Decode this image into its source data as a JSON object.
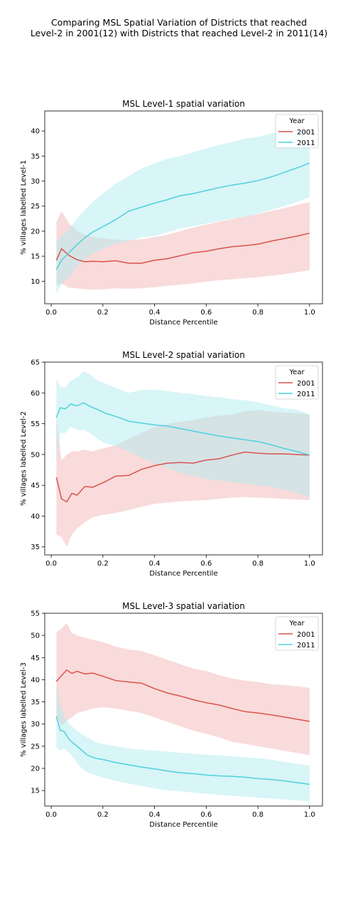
{
  "figure": {
    "title_line1": "Comparing MSL Spatial Variation of Districts that reached",
    "title_line2": "Level-2 in 2001(12) with Districts that reached Level-2 in 2011(14)"
  },
  "colors": {
    "2001": "#d9534f",
    "2011": "#4fd1dc",
    "band_2001": "#f2b8b5",
    "band_2011": "#b2ebef"
  },
  "chart_data": [
    {
      "type": "line",
      "title": "MSL Level-1 spatial variation",
      "xlabel": "Distance Percentile",
      "ylabel": "% villages labelled Level-1",
      "xlim": [
        -0.025,
        1.05
      ],
      "ylim": [
        5.5,
        44
      ],
      "xticks": [
        0.0,
        0.2,
        0.4,
        0.6,
        0.8,
        1.0
      ],
      "xtick_labels": [
        "0.0",
        "0.2",
        "0.4",
        "0.6",
        "0.8",
        "1.0"
      ],
      "yticks": [
        10,
        15,
        20,
        25,
        30,
        35,
        40
      ],
      "ytick_labels": [
        "10",
        "15",
        "20",
        "25",
        "30",
        "35",
        "40"
      ],
      "legend": {
        "title": "Year",
        "position": "top-right"
      },
      "series": [
        {
          "name": "2001",
          "x": [
            0.02,
            0.04,
            0.07,
            0.1,
            0.13,
            0.16,
            0.2,
            0.25,
            0.3,
            0.35,
            0.4,
            0.45,
            0.5,
            0.55,
            0.6,
            0.65,
            0.7,
            0.75,
            0.8,
            0.85,
            0.9,
            0.95,
            1.0
          ],
          "y": [
            14.2,
            16.5,
            15.1,
            14.3,
            13.9,
            14.0,
            13.9,
            14.1,
            13.6,
            13.6,
            14.2,
            14.5,
            15.1,
            15.7,
            16.0,
            16.5,
            16.9,
            17.1,
            17.4,
            18.0,
            18.5,
            19.0,
            19.6
          ],
          "lower": [
            9.2,
            9.5,
            8.7,
            8.6,
            8.4,
            8.3,
            8.4,
            8.6,
            8.5,
            8.6,
            8.8,
            9.1,
            9.3,
            9.6,
            9.9,
            10.2,
            10.4,
            10.6,
            10.8,
            11.1,
            11.4,
            11.8,
            12.2
          ],
          "upper": [
            21.8,
            24.0,
            21.5,
            20.1,
            19.3,
            18.9,
            18.6,
            18.3,
            18.2,
            18.4,
            18.8,
            19.3,
            20.0,
            20.7,
            21.3,
            21.9,
            22.4,
            22.9,
            23.4,
            24.0,
            24.6,
            25.2,
            25.8
          ]
        },
        {
          "name": "2011",
          "x": [
            0.02,
            0.04,
            0.07,
            0.1,
            0.13,
            0.16,
            0.2,
            0.25,
            0.3,
            0.35,
            0.4,
            0.45,
            0.5,
            0.55,
            0.6,
            0.65,
            0.7,
            0.75,
            0.8,
            0.85,
            0.9,
            0.95,
            1.0
          ],
          "y": [
            12.3,
            14.2,
            15.8,
            17.3,
            18.7,
            19.8,
            20.9,
            22.3,
            24.0,
            24.8,
            25.6,
            26.3,
            27.1,
            27.5,
            28.1,
            28.7,
            29.2,
            29.6,
            30.1,
            30.8,
            31.7,
            32.6,
            33.6
          ],
          "lower": [
            7.5,
            9.5,
            11.0,
            13.0,
            14.5,
            15.5,
            16.5,
            17.5,
            18.0,
            18.8,
            19.0,
            19.8,
            20.5,
            21.0,
            21.5,
            22.0,
            22.5,
            22.8,
            23.5,
            24.2,
            25.0,
            25.8,
            26.8
          ],
          "upper": [
            18.0,
            19.0,
            20.5,
            22.5,
            24.2,
            25.8,
            27.5,
            29.5,
            31.0,
            32.5,
            33.5,
            34.5,
            35.0,
            35.8,
            36.5,
            37.2,
            37.8,
            38.5,
            38.8,
            39.5,
            40.0,
            40.3,
            40.5
          ]
        }
      ]
    },
    {
      "type": "line",
      "title": "MSL Level-2 spatial variation",
      "xlabel": "Distance Percentile",
      "ylabel": "% villages labelled Level-2",
      "xlim": [
        -0.025,
        1.05
      ],
      "ylim": [
        33.7,
        65
      ],
      "xticks": [
        0.0,
        0.2,
        0.4,
        0.6,
        0.8,
        1.0
      ],
      "xtick_labels": [
        "0.0",
        "0.2",
        "0.4",
        "0.6",
        "0.8",
        "1.0"
      ],
      "yticks": [
        35,
        40,
        45,
        50,
        55,
        60,
        65
      ],
      "ytick_labels": [
        "35",
        "40",
        "45",
        "50",
        "55",
        "60",
        "65"
      ],
      "legend": {
        "title": "Year",
        "position": "top-right"
      },
      "series": [
        {
          "name": "2001",
          "x": [
            0.02,
            0.04,
            0.06,
            0.08,
            0.1,
            0.13,
            0.16,
            0.2,
            0.25,
            0.3,
            0.35,
            0.4,
            0.45,
            0.5,
            0.55,
            0.6,
            0.65,
            0.7,
            0.75,
            0.8,
            0.85,
            0.9,
            0.95,
            1.0
          ],
          "y": [
            46.3,
            42.8,
            42.3,
            43.7,
            43.4,
            44.8,
            44.7,
            45.4,
            46.5,
            46.6,
            47.6,
            48.2,
            48.6,
            48.7,
            48.6,
            49.1,
            49.3,
            49.9,
            50.4,
            50.2,
            50.1,
            50.1,
            50.0,
            49.9
          ],
          "lower": [
            37.0,
            36.6,
            35.0,
            37.0,
            38.0,
            39.0,
            39.8,
            40.2,
            40.5,
            41.0,
            41.5,
            42.0,
            42.2,
            42.4,
            42.5,
            42.6,
            42.8,
            43.0,
            43.1,
            43.0,
            42.9,
            42.8,
            42.7,
            42.6
          ],
          "upper": [
            56.0,
            49.0,
            50.0,
            50.5,
            50.5,
            50.8,
            50.5,
            51.0,
            51.5,
            52.5,
            53.5,
            54.5,
            55.0,
            55.3,
            55.6,
            56.0,
            56.3,
            56.5,
            57.0,
            57.2,
            57.0,
            56.8,
            56.7,
            56.5
          ]
        },
        {
          "name": "2011",
          "x": [
            0.02,
            0.035,
            0.055,
            0.075,
            0.1,
            0.125,
            0.15,
            0.18,
            0.21,
            0.24,
            0.27,
            0.3,
            0.35,
            0.4,
            0.45,
            0.5,
            0.55,
            0.6,
            0.65,
            0.7,
            0.75,
            0.8,
            0.85,
            0.9,
            0.95,
            1.0
          ],
          "y": [
            56.0,
            57.6,
            57.4,
            58.2,
            57.9,
            58.4,
            57.8,
            57.3,
            56.7,
            56.3,
            55.9,
            55.4,
            55.1,
            54.8,
            54.6,
            54.2,
            53.8,
            53.4,
            53.0,
            52.7,
            52.4,
            52.1,
            51.6,
            51.0,
            50.5,
            49.9
          ],
          "lower": [
            49.0,
            53.5,
            53.5,
            54.5,
            54.0,
            54.0,
            53.5,
            52.5,
            51.8,
            51.5,
            51.0,
            50.5,
            49.5,
            48.5,
            47.8,
            47.0,
            46.5,
            46.0,
            45.8,
            45.5,
            45.3,
            45.0,
            44.8,
            44.3,
            43.8,
            43.0
          ],
          "upper": [
            62.3,
            61.0,
            60.8,
            62.0,
            62.5,
            63.5,
            63.0,
            62.0,
            61.5,
            61.0,
            60.5,
            60.0,
            60.5,
            60.5,
            60.3,
            60.0,
            59.8,
            59.5,
            59.3,
            59.0,
            58.8,
            58.5,
            58.0,
            57.5,
            57.3,
            56.5
          ]
        }
      ]
    },
    {
      "type": "line",
      "title": "MSL Level-3 spatial variation",
      "xlabel": "Distance Percentile",
      "ylabel": "% villages labelled Level-3",
      "xlim": [
        -0.025,
        1.05
      ],
      "ylim": [
        11.5,
        55
      ],
      "xticks": [
        0.0,
        0.2,
        0.4,
        0.6,
        0.8,
        1.0
      ],
      "xtick_labels": [
        "0.0",
        "0.2",
        "0.4",
        "0.6",
        "0.8",
        "1.0"
      ],
      "yticks": [
        15,
        20,
        25,
        30,
        35,
        40,
        45,
        50,
        55
      ],
      "ytick_labels": [
        "15",
        "20",
        "25",
        "30",
        "35",
        "40",
        "45",
        "50",
        "55"
      ],
      "legend": {
        "title": "Year",
        "position": "top-right"
      },
      "series": [
        {
          "name": "2001",
          "x": [
            0.02,
            0.04,
            0.06,
            0.08,
            0.1,
            0.13,
            0.16,
            0.2,
            0.25,
            0.3,
            0.35,
            0.4,
            0.45,
            0.5,
            0.55,
            0.6,
            0.65,
            0.7,
            0.75,
            0.8,
            0.85,
            0.9,
            0.95,
            1.0
          ],
          "y": [
            39.6,
            40.9,
            42.2,
            41.4,
            41.9,
            41.3,
            41.5,
            40.8,
            39.8,
            39.5,
            39.2,
            38.0,
            37.0,
            36.3,
            35.5,
            34.8,
            34.3,
            33.5,
            32.8,
            32.5,
            32.1,
            31.6,
            31.1,
            30.6
          ],
          "lower": [
            31.5,
            29.5,
            30.8,
            31.5,
            32.5,
            33.0,
            33.5,
            33.8,
            33.5,
            33.0,
            32.5,
            31.5,
            30.5,
            29.5,
            28.5,
            27.8,
            27.0,
            26.0,
            25.5,
            25.0,
            24.5,
            24.0,
            23.5,
            23.0
          ],
          "upper": [
            50.8,
            51.5,
            52.8,
            50.5,
            50.0,
            49.5,
            49.0,
            48.5,
            47.5,
            46.8,
            46.5,
            45.5,
            44.5,
            43.5,
            42.5,
            42.0,
            41.0,
            40.3,
            39.8,
            39.5,
            39.0,
            38.8,
            38.5,
            38.2
          ]
        },
        {
          "name": "2011",
          "x": [
            0.02,
            0.035,
            0.05,
            0.07,
            0.09,
            0.11,
            0.14,
            0.17,
            0.2,
            0.25,
            0.3,
            0.35,
            0.4,
            0.45,
            0.5,
            0.55,
            0.6,
            0.65,
            0.7,
            0.75,
            0.8,
            0.85,
            0.9,
            0.95,
            1.0
          ],
          "y": [
            31.7,
            28.6,
            28.3,
            26.5,
            25.5,
            24.5,
            23.0,
            22.3,
            22.0,
            21.3,
            20.8,
            20.3,
            19.9,
            19.4,
            19.0,
            18.8,
            18.5,
            18.3,
            18.2,
            18.0,
            17.7,
            17.5,
            17.2,
            16.8,
            16.4
          ],
          "lower": [
            24.8,
            24.0,
            24.5,
            23.5,
            22.0,
            20.5,
            19.0,
            18.5,
            17.9,
            17.2,
            16.6,
            16.0,
            15.5,
            15.1,
            14.8,
            14.5,
            14.3,
            14.0,
            13.8,
            13.6,
            13.4,
            13.2,
            13.0,
            12.8,
            12.5
          ],
          "upper": [
            38.5,
            34.5,
            32.0,
            30.0,
            29.0,
            28.0,
            27.0,
            26.0,
            25.5,
            25.0,
            24.5,
            24.2,
            24.0,
            23.8,
            23.5,
            23.3,
            23.1,
            22.9,
            22.7,
            22.5,
            22.3,
            22.0,
            21.5,
            21.0,
            20.7
          ]
        }
      ]
    }
  ]
}
